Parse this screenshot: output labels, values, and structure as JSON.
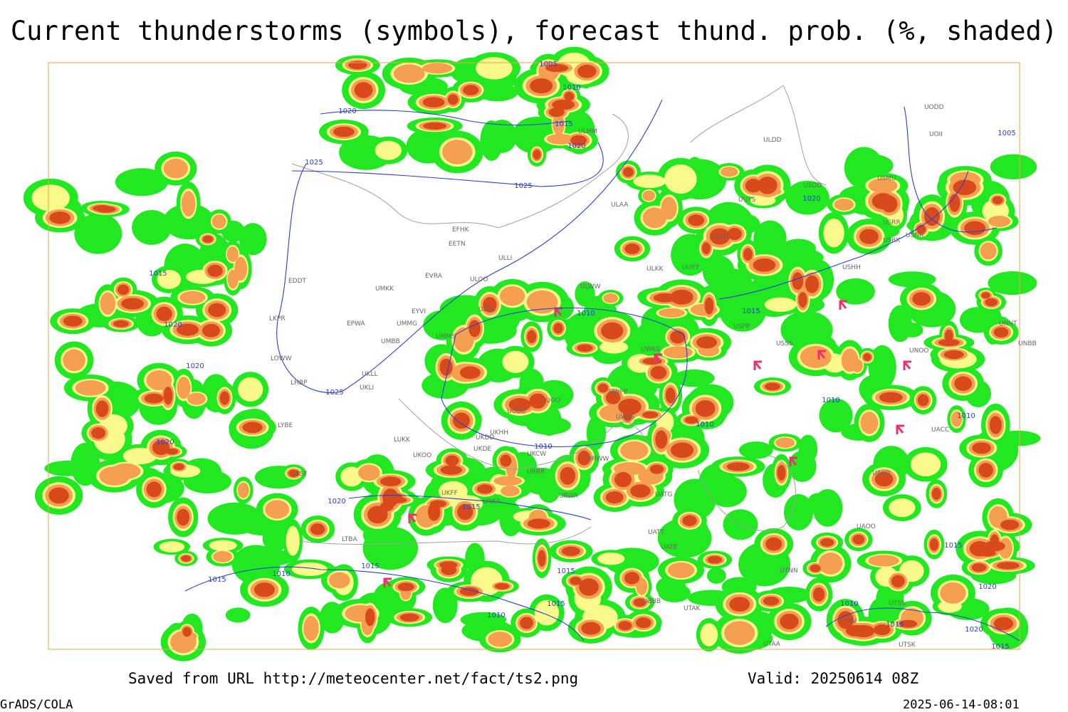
{
  "title": "Current thunderstorms (symbols), forecast thund. prob. (%, shaded)",
  "footer": {
    "source": "Saved from URL http://meteocenter.net/fact/ts2.png",
    "valid": "Valid: 20250614 08Z",
    "software": "GrADS/COLA",
    "timestamp": "2025-06-14-08:01"
  },
  "map": {
    "stations": [
      "ULLI",
      "EFHK",
      "EETN",
      "EVRA",
      "ULOO",
      "UMKK",
      "EYVI",
      "ULOL",
      "EPWA",
      "UMMG",
      "UMBB",
      "UMMS",
      "EDDT",
      "LKPR",
      "LOWW",
      "LHBP",
      "UKLL",
      "UKLI",
      "LYBE",
      "LBSF",
      "LUKK",
      "UKOO",
      "UKFF",
      "URKA",
      "URRR",
      "UKDD",
      "UKDE",
      "UKCW",
      "UKHH",
      "UUOB",
      "UUOO",
      "UWPP",
      "UWSS",
      "URWW",
      "URWA",
      "UATG",
      "UATT",
      "UATE",
      "LTBA",
      "UBBB",
      "UTAK",
      "UTNN",
      "UAOO",
      "UTAA",
      "UTAV",
      "UTSS",
      "UTSK",
      "ULWW",
      "ULKK",
      "UUYY",
      "UUYH",
      "UUYS",
      "ULAA",
      "ULMM",
      "ULDD",
      "USPP",
      "USSS",
      "USHH",
      "USRR",
      "USRK",
      "USNR",
      "USMU",
      "USDD",
      "UODD",
      "UOII",
      "UNNT",
      "UNBB",
      "UNOO",
      "UACC",
      "UAKD",
      "UWKS"
    ],
    "isobar_labels": [
      1005,
      1010,
      1015,
      1020,
      1020,
      1025,
      1025,
      1015,
      1020,
      1020,
      1020,
      1025,
      1010,
      1015,
      1020,
      1005,
      1010,
      1010,
      1010,
      1010,
      1020,
      1015,
      1015,
      1010,
      1015,
      1015,
      1015,
      1010,
      1015,
      1020,
      1010,
      1015,
      1020,
      1015
    ]
  }
}
